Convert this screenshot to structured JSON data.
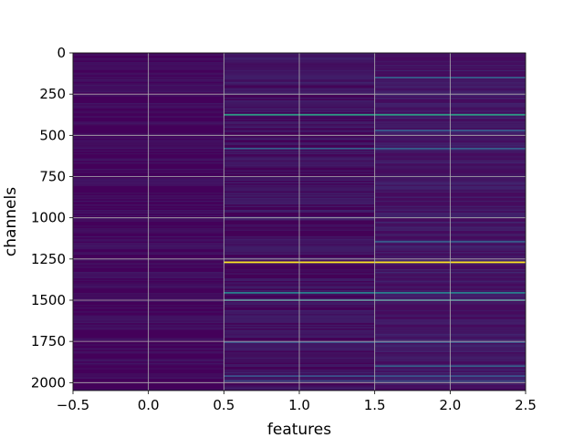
{
  "chart_data": {
    "type": "heatmap",
    "title": "",
    "xlabel": "features",
    "ylabel": "channels",
    "xlim": [
      -0.5,
      2.5
    ],
    "ylim": [
      2048,
      0
    ],
    "y_inverted": true,
    "grid": true,
    "colormap": "viridis",
    "xticks": [
      -0.5,
      0.0,
      0.5,
      1.0,
      1.5,
      2.0,
      2.5
    ],
    "xtick_labels": [
      "−0.5",
      "0.0",
      "0.5",
      "1.0",
      "1.5",
      "2.0",
      "2.5"
    ],
    "yticks": [
      0,
      250,
      500,
      750,
      1000,
      1250,
      1500,
      1750,
      2000
    ],
    "ytick_labels": [
      "0",
      "250",
      "500",
      "750",
      "1000",
      "1250",
      "1500",
      "1750",
      "2000"
    ],
    "columns": [
      0,
      1,
      2
    ],
    "n_channels": 2048,
    "background_colors": [
      "#44015a",
      "#440257",
      "#460b5e"
    ],
    "highlights": [
      {
        "channel": 375,
        "columns": [
          1,
          2
        ],
        "value": 0.55
      },
      {
        "channel": 1270,
        "columns": [
          1,
          2
        ],
        "value": 1.0
      },
      {
        "channel": 1455,
        "columns": [
          1,
          2
        ],
        "value": 0.42
      },
      {
        "channel": 1500,
        "columns": [
          1,
          2
        ],
        "value": 0.38
      },
      {
        "channel": 580,
        "columns": [
          1,
          2
        ],
        "value": 0.3
      },
      {
        "channel": 470,
        "columns": [
          2
        ],
        "value": 0.28
      },
      {
        "channel": 150,
        "columns": [
          2
        ],
        "value": 0.3
      },
      {
        "channel": 1145,
        "columns": [
          2
        ],
        "value": 0.28
      },
      {
        "channel": 1900,
        "columns": [
          2
        ],
        "value": 0.3
      },
      {
        "channel": 1755,
        "columns": [
          1,
          2
        ],
        "value": 0.25
      },
      {
        "channel": 1960,
        "columns": [
          1,
          2
        ],
        "value": 0.25
      },
      {
        "channel": 1990,
        "columns": [
          1,
          2
        ],
        "value": 0.22
      }
    ]
  }
}
